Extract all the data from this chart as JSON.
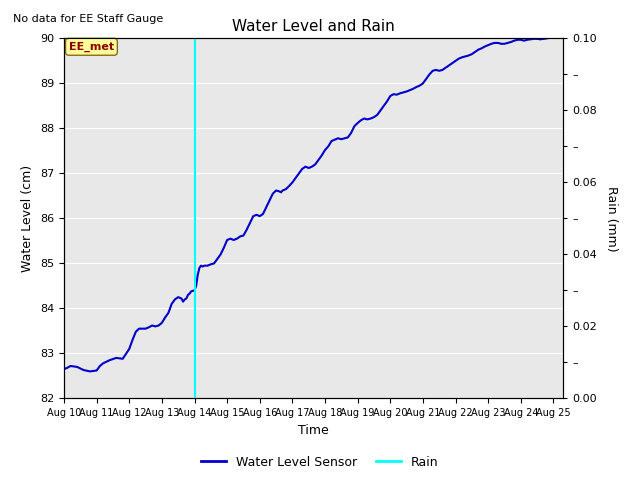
{
  "title": "Water Level and Rain",
  "subtitle": "No data for EE Staff Gauge",
  "xlabel": "Time",
  "ylabel_left": "Water Level (cm)",
  "ylabel_right": "Rain (mm)",
  "annotation_label": "EE_met",
  "annotation_color": "#8B0000",
  "annotation_bg": "#FFFF99",
  "annotation_border": "#8B6914",
  "xlim_start_day": 10,
  "xlim_end_day": 25,
  "ylim_left": [
    82.0,
    90.0
  ],
  "ylim_right": [
    0.0,
    0.1
  ],
  "yticks_left": [
    82.0,
    83.0,
    84.0,
    85.0,
    86.0,
    87.0,
    88.0,
    89.0,
    90.0
  ],
  "yticks_right_labeled": [
    0.0,
    0.02,
    0.04,
    0.06,
    0.08,
    0.1
  ],
  "yticks_right_minor": [
    0.01,
    0.03,
    0.05,
    0.07,
    0.09
  ],
  "xtick_labels": [
    "Aug 10",
    "Aug 11",
    "Aug 12",
    "Aug 13",
    "Aug 14",
    "Aug 15",
    "Aug 16",
    "Aug 17",
    "Aug 18",
    "Aug 19",
    "Aug 20",
    "Aug 21",
    "Aug 22",
    "Aug 23",
    "Aug 24",
    "Aug 25"
  ],
  "vline_day": 14,
  "vline_color": "cyan",
  "line_color": "#0000CC",
  "line_width": 1.5,
  "bg_color": "#E8E8E8",
  "legend_line_color_water": "#0000CC",
  "legend_line_color_rain": "cyan",
  "legend_label_water": "Water Level Sensor",
  "legend_label_rain": "Rain",
  "water_level_data": [
    [
      10.0,
      82.65
    ],
    [
      10.1,
      82.68
    ],
    [
      10.2,
      82.72
    ],
    [
      10.4,
      82.7
    ],
    [
      10.6,
      82.63
    ],
    [
      10.8,
      82.6
    ],
    [
      11.0,
      82.62
    ],
    [
      11.1,
      82.72
    ],
    [
      11.2,
      82.78
    ],
    [
      11.4,
      82.85
    ],
    [
      11.6,
      82.9
    ],
    [
      11.8,
      82.88
    ],
    [
      12.0,
      83.1
    ],
    [
      12.1,
      83.3
    ],
    [
      12.2,
      83.48
    ],
    [
      12.3,
      83.55
    ],
    [
      12.5,
      83.55
    ],
    [
      12.6,
      83.58
    ],
    [
      12.7,
      83.62
    ],
    [
      12.8,
      83.6
    ],
    [
      12.9,
      83.62
    ],
    [
      13.0,
      83.68
    ],
    [
      13.1,
      83.8
    ],
    [
      13.2,
      83.9
    ],
    [
      13.3,
      84.1
    ],
    [
      13.4,
      84.2
    ],
    [
      13.5,
      84.25
    ],
    [
      13.6,
      84.22
    ],
    [
      13.65,
      84.15
    ],
    [
      13.7,
      84.2
    ],
    [
      13.75,
      84.22
    ],
    [
      13.8,
      84.3
    ],
    [
      13.85,
      84.33
    ],
    [
      13.9,
      84.38
    ],
    [
      14.0,
      84.4
    ],
    [
      14.05,
      84.5
    ],
    [
      14.1,
      84.75
    ],
    [
      14.15,
      84.9
    ],
    [
      14.2,
      84.95
    ],
    [
      14.25,
      84.93
    ],
    [
      14.3,
      84.95
    ],
    [
      14.4,
      84.95
    ],
    [
      14.5,
      84.98
    ],
    [
      14.6,
      85.0
    ],
    [
      14.7,
      85.1
    ],
    [
      14.8,
      85.2
    ],
    [
      14.9,
      85.35
    ],
    [
      15.0,
      85.52
    ],
    [
      15.1,
      85.55
    ],
    [
      15.2,
      85.52
    ],
    [
      15.3,
      85.55
    ],
    [
      15.4,
      85.6
    ],
    [
      15.5,
      85.62
    ],
    [
      15.6,
      85.75
    ],
    [
      15.7,
      85.9
    ],
    [
      15.8,
      86.05
    ],
    [
      15.9,
      86.08
    ],
    [
      16.0,
      86.05
    ],
    [
      16.1,
      86.1
    ],
    [
      16.2,
      86.25
    ],
    [
      16.3,
      86.4
    ],
    [
      16.4,
      86.55
    ],
    [
      16.5,
      86.62
    ],
    [
      16.6,
      86.6
    ],
    [
      16.65,
      86.58
    ],
    [
      16.7,
      86.62
    ],
    [
      16.8,
      86.65
    ],
    [
      16.9,
      86.72
    ],
    [
      17.0,
      86.8
    ],
    [
      17.1,
      86.9
    ],
    [
      17.2,
      87.0
    ],
    [
      17.3,
      87.1
    ],
    [
      17.4,
      87.15
    ],
    [
      17.5,
      87.12
    ],
    [
      17.6,
      87.15
    ],
    [
      17.7,
      87.2
    ],
    [
      17.8,
      87.3
    ],
    [
      17.9,
      87.4
    ],
    [
      18.0,
      87.52
    ],
    [
      18.1,
      87.6
    ],
    [
      18.2,
      87.72
    ],
    [
      18.3,
      87.75
    ],
    [
      18.4,
      87.78
    ],
    [
      18.5,
      87.76
    ],
    [
      18.6,
      87.78
    ],
    [
      18.7,
      87.8
    ],
    [
      18.8,
      87.9
    ],
    [
      18.9,
      88.05
    ],
    [
      19.0,
      88.12
    ],
    [
      19.1,
      88.18
    ],
    [
      19.2,
      88.22
    ],
    [
      19.3,
      88.2
    ],
    [
      19.4,
      88.22
    ],
    [
      19.5,
      88.25
    ],
    [
      19.6,
      88.3
    ],
    [
      19.7,
      88.4
    ],
    [
      19.8,
      88.5
    ],
    [
      19.9,
      88.6
    ],
    [
      20.0,
      88.72
    ],
    [
      20.1,
      88.76
    ],
    [
      20.2,
      88.75
    ],
    [
      20.3,
      88.78
    ],
    [
      20.4,
      88.8
    ],
    [
      20.5,
      88.82
    ],
    [
      20.6,
      88.85
    ],
    [
      20.7,
      88.88
    ],
    [
      20.8,
      88.92
    ],
    [
      20.9,
      88.95
    ],
    [
      21.0,
      89.0
    ],
    [
      21.1,
      89.1
    ],
    [
      21.2,
      89.2
    ],
    [
      21.3,
      89.28
    ],
    [
      21.4,
      89.3
    ],
    [
      21.5,
      89.28
    ],
    [
      21.6,
      89.3
    ],
    [
      21.7,
      89.35
    ],
    [
      21.8,
      89.4
    ],
    [
      21.9,
      89.45
    ],
    [
      22.0,
      89.5
    ],
    [
      22.1,
      89.55
    ],
    [
      22.2,
      89.58
    ],
    [
      22.3,
      89.6
    ],
    [
      22.4,
      89.62
    ],
    [
      22.5,
      89.65
    ],
    [
      22.6,
      89.7
    ],
    [
      22.7,
      89.75
    ],
    [
      22.8,
      89.78
    ],
    [
      22.9,
      89.82
    ],
    [
      23.0,
      89.85
    ],
    [
      23.1,
      89.88
    ],
    [
      23.2,
      89.9
    ],
    [
      23.3,
      89.9
    ],
    [
      23.4,
      89.88
    ],
    [
      23.5,
      89.88
    ],
    [
      23.6,
      89.9
    ],
    [
      23.7,
      89.92
    ],
    [
      23.8,
      89.95
    ],
    [
      23.9,
      89.97
    ],
    [
      24.0,
      89.97
    ],
    [
      24.1,
      89.95
    ],
    [
      24.2,
      89.97
    ],
    [
      24.3,
      89.98
    ],
    [
      24.4,
      89.99
    ],
    [
      24.5,
      89.99
    ],
    [
      24.6,
      89.98
    ],
    [
      24.7,
      89.99
    ],
    [
      24.8,
      90.0
    ]
  ]
}
